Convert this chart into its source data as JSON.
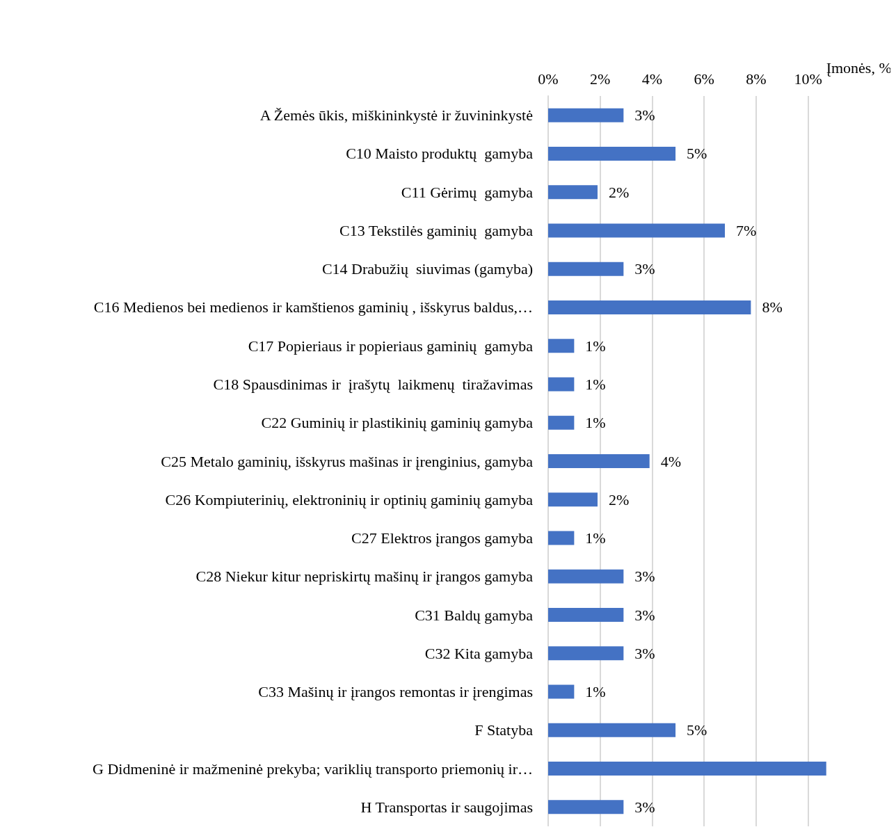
{
  "chart_data": {
    "type": "bar",
    "orientation": "horizontal",
    "xlabel": "Įmonės, %",
    "categories": [
      "A Žemės ūkis, miškininkystė ir žuvininkystė",
      "C10 Maisto produktų  gamyba",
      "C11 Gėrimų  gamyba",
      "C13 Tekstilės gaminių  gamyba",
      "C14 Drabužių  siuvimas (gamyba)",
      "C16 Medienos bei medienos ir kamštienos gaminių , išskyrus baldus,…",
      "C17 Popieriaus ir popieriaus gaminių  gamyba",
      "C18 Spausdinimas ir  įrašytų  laikmenų  tiražavimas",
      "C22 Guminių ir plastikinių gaminių gamyba",
      "C25 Metalo gaminių, išskyrus mašinas ir įrenginius, gamyba",
      "C26 Kompiuterinių, elektroninių ir optinių gaminių gamyba",
      "C27 Elektros įrangos gamyba",
      "C28 Niekur kitur nepriskirtų mašinų ir įrangos gamyba",
      "C31 Baldų gamyba",
      "C32 Kita gamyba",
      "C33 Mašinų ir įrangos remontas ir įrengimas",
      "F Statyba",
      "G Didmeninė ir mažmeninė prekyba; variklių transporto priemonių ir…",
      "H Transportas ir saugojimas"
    ],
    "values": [
      2.9,
      4.9,
      1.9,
      6.8,
      2.9,
      7.8,
      1.0,
      1.0,
      1.0,
      3.9,
      1.9,
      1.0,
      2.9,
      2.9,
      2.9,
      1.0,
      4.9,
      10.7,
      2.9
    ],
    "value_labels": [
      "3%",
      "5%",
      "2%",
      "7%",
      "3%",
      "8%",
      "1%",
      "1%",
      "1%",
      "4%",
      "2%",
      "1%",
      "3%",
      "3%",
      "3%",
      "1%",
      "5%",
      null,
      "3%"
    ],
    "color": "#4472c4",
    "xlim": [
      0,
      10.7
    ],
    "xticks": [
      {
        "value": 0,
        "label": "0%"
      },
      {
        "value": 2,
        "label": "2%"
      },
      {
        "value": 4,
        "label": "4%"
      },
      {
        "value": 6,
        "label": "6%"
      },
      {
        "value": 8,
        "label": "8%"
      },
      {
        "value": 10,
        "label": "10%"
      }
    ],
    "grid": "x"
  }
}
